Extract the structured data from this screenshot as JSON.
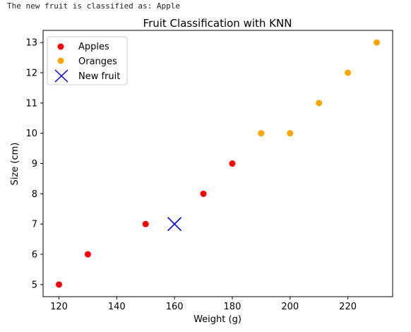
{
  "output": {
    "console_text": "The new fruit is classified as: Apple"
  },
  "chart_data": {
    "type": "scatter",
    "title": "Fruit Classification with KNN",
    "xlabel": "Weight (g)",
    "ylabel": "Size (cm)",
    "xlim": [
      114.5,
      235.5
    ],
    "ylim": [
      4.6,
      13.4
    ],
    "xticks": [
      120,
      140,
      160,
      180,
      200,
      220
    ],
    "yticks": [
      5,
      6,
      7,
      8,
      9,
      10,
      11,
      12,
      13
    ],
    "legend_position": "top-left",
    "grid": false,
    "series": [
      {
        "name": "Apples",
        "marker": "circle",
        "color": "#ff0000",
        "x": [
          120,
          130,
          150,
          170,
          180
        ],
        "y": [
          5,
          6,
          7,
          8,
          9
        ]
      },
      {
        "name": "Oranges",
        "marker": "circle",
        "color": "#ffa500",
        "x": [
          190,
          200,
          210,
          220,
          230
        ],
        "y": [
          10,
          10,
          11,
          12,
          13
        ]
      },
      {
        "name": "New fruit",
        "marker": "x",
        "color": "#0000cd",
        "x": [
          160
        ],
        "y": [
          7
        ]
      }
    ]
  }
}
